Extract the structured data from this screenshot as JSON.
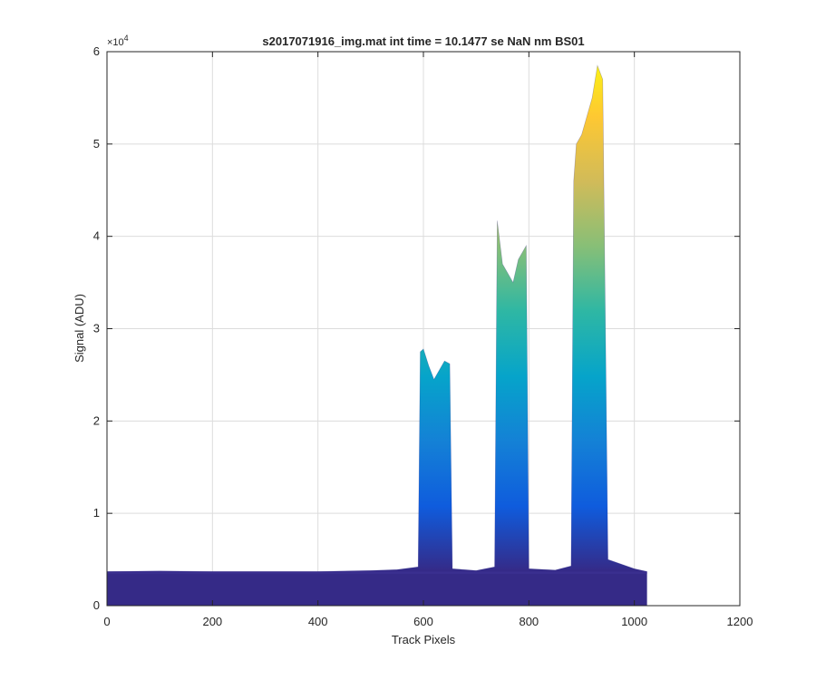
{
  "chart_data": {
    "type": "area",
    "title": "s2017071916_img.mat int time = 10.1477 se  NaN nm BS01",
    "xlabel": "Track Pixels",
    "ylabel": "Signal (ADU)",
    "y_multiplier_label": "×10",
    "y_multiplier_exponent": "4",
    "xlim": [
      0,
      1200
    ],
    "ylim": [
      0,
      60000
    ],
    "x_ticks": [
      0,
      200,
      400,
      600,
      800,
      1000,
      1200
    ],
    "x_tick_labels": [
      "0",
      "200",
      "400",
      "600",
      "800",
      "1000",
      "1200"
    ],
    "y_ticks": [
      0,
      10000,
      20000,
      30000,
      40000,
      50000,
      60000
    ],
    "y_tick_labels": [
      "0",
      "1",
      "2",
      "3",
      "4",
      "5",
      "6"
    ],
    "grid": true,
    "colormap": [
      "#352a87",
      "#0f5cdd",
      "#1481d6",
      "#06a4ca",
      "#2eb7a4",
      "#87bf77",
      "#d1bb59",
      "#fec832",
      "#f9fb0e"
    ],
    "baseline": 3700,
    "x_end": 1024,
    "series": [
      {
        "x": [
          0,
          100,
          200,
          300,
          400,
          500,
          550,
          590,
          594,
          600,
          610,
          620,
          630,
          640,
          650,
          655,
          700,
          735,
          740,
          750,
          760,
          770,
          780,
          790,
          795,
          800,
          850,
          880,
          885,
          890,
          900,
          910,
          920,
          930,
          940,
          950,
          1000,
          1024
        ],
        "y": [
          3700,
          3750,
          3700,
          3700,
          3700,
          3800,
          3900,
          4200,
          27500,
          27800,
          26000,
          24500,
          25500,
          26500,
          26200,
          4000,
          3800,
          4200,
          41700,
          37000,
          36000,
          35000,
          37500,
          38500,
          39000,
          4000,
          3850,
          4300,
          46000,
          50000,
          51000,
          53000,
          55000,
          58500,
          57000,
          5000,
          4000,
          3700
        ]
      }
    ]
  }
}
